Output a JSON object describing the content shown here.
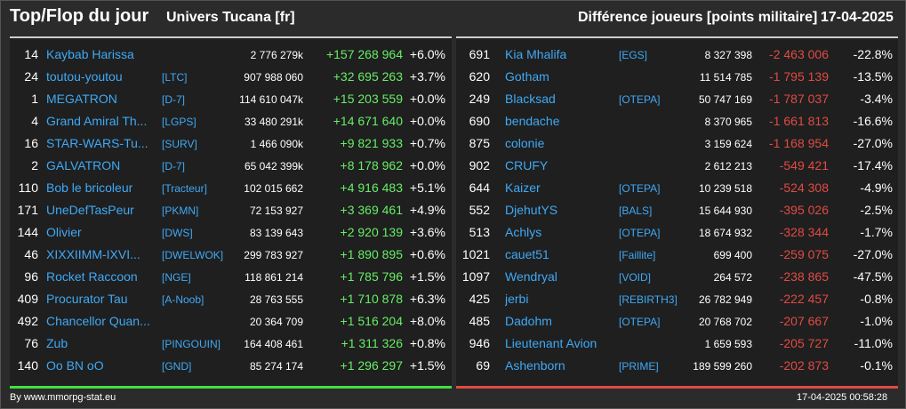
{
  "header": {
    "title": "Top/Flop du jour",
    "server": "Univers Tucana [fr]",
    "description": "Différence joueurs [points militaire]",
    "date": "17-04-2025"
  },
  "colors": {
    "gain": "#66ee66",
    "loss": "#e04b43",
    "link": "#3fa9f5",
    "top_bar": "#44dd44",
    "flop_bar": "#e04b43"
  },
  "top": [
    {
      "rank": "14",
      "name": "Kaybab Harissa",
      "alliance": "",
      "points": "2 776 279k",
      "diff": "+157 268 964",
      "pct": "+6.0%"
    },
    {
      "rank": "24",
      "name": "toutou-youtou",
      "alliance": "[LTC]",
      "points": "907 988 060",
      "diff": "+32 695 263",
      "pct": "+3.7%"
    },
    {
      "rank": "1",
      "name": "MEGATRON",
      "alliance": "[D-7]",
      "points": "114 610 047k",
      "diff": "+15 203 559",
      "pct": "+0.0%"
    },
    {
      "rank": "4",
      "name": "Grand Amiral Th...",
      "alliance": "[LGPS]",
      "points": "33 480 291k",
      "diff": "+14 671 640",
      "pct": "+0.0%"
    },
    {
      "rank": "16",
      "name": "STAR-WARS-Tu...",
      "alliance": "[SURV]",
      "points": "1 466 090k",
      "diff": "+9 821 933",
      "pct": "+0.7%"
    },
    {
      "rank": "2",
      "name": "GALVATRON",
      "alliance": "[D-7]",
      "points": "65 042 399k",
      "diff": "+8 178 962",
      "pct": "+0.0%"
    },
    {
      "rank": "110",
      "name": "Bob le bricoleur",
      "alliance": "[Tracteur]",
      "points": "102 015 662",
      "diff": "+4 916 483",
      "pct": "+5.1%"
    },
    {
      "rank": "171",
      "name": "UneDefTasPeur",
      "alliance": "[PKMN]",
      "points": "72 153 927",
      "diff": "+3 369 461",
      "pct": "+4.9%"
    },
    {
      "rank": "144",
      "name": "Olivier",
      "alliance": "[DWS]",
      "points": "83 139 643",
      "diff": "+2 920 139",
      "pct": "+3.6%"
    },
    {
      "rank": "46",
      "name": "XIXXIIMM-IXVI...",
      "alliance": "[DWELWOK]",
      "points": "299 783 927",
      "diff": "+1 890 895",
      "pct": "+0.6%"
    },
    {
      "rank": "96",
      "name": "Rocket Raccoon",
      "alliance": "[NGE]",
      "points": "118 861 214",
      "diff": "+1 785 796",
      "pct": "+1.5%"
    },
    {
      "rank": "409",
      "name": "Procurator Tau",
      "alliance": "[A-Noob]",
      "points": "28 763 555",
      "diff": "+1 710 878",
      "pct": "+6.3%"
    },
    {
      "rank": "492",
      "name": "Chancellor Quan...",
      "alliance": "",
      "points": "20 364 709",
      "diff": "+1 516 204",
      "pct": "+8.0%"
    },
    {
      "rank": "76",
      "name": "Zub",
      "alliance": "[PINGOUIN]",
      "points": "164 408 461",
      "diff": "+1 311 326",
      "pct": "+0.8%"
    },
    {
      "rank": "140",
      "name": "Oo BN oO",
      "alliance": "[GND]",
      "points": "85 274 174",
      "diff": "+1 296 297",
      "pct": "+1.5%"
    }
  ],
  "flop": [
    {
      "rank": "691",
      "name": "Kia Mhalifa",
      "alliance": "[EGS]",
      "points": "8 327 398",
      "diff": "-2 463 006",
      "pct": "-22.8%"
    },
    {
      "rank": "620",
      "name": "Gotham",
      "alliance": "",
      "points": "11 514 785",
      "diff": "-1 795 139",
      "pct": "-13.5%"
    },
    {
      "rank": "249",
      "name": "Blacksad",
      "alliance": "[OTEPA]",
      "points": "50 747 169",
      "diff": "-1 787 037",
      "pct": "-3.4%"
    },
    {
      "rank": "690",
      "name": "bendache",
      "alliance": "",
      "points": "8 370 965",
      "diff": "-1 661 813",
      "pct": "-16.6%"
    },
    {
      "rank": "875",
      "name": "colonie",
      "alliance": "",
      "points": "3 159 624",
      "diff": "-1 168 954",
      "pct": "-27.0%"
    },
    {
      "rank": "902",
      "name": "CRUFY",
      "alliance": "",
      "points": "2 612 213",
      "diff": "-549 421",
      "pct": "-17.4%"
    },
    {
      "rank": "644",
      "name": "Kaizer",
      "alliance": "[OTEPA]",
      "points": "10 239 518",
      "diff": "-524 308",
      "pct": "-4.9%"
    },
    {
      "rank": "552",
      "name": "DjehutYS",
      "alliance": "[BALS]",
      "points": "15 644 930",
      "diff": "-395 026",
      "pct": "-2.5%"
    },
    {
      "rank": "513",
      "name": "Achlys",
      "alliance": "[OTEPA]",
      "points": "18 674 932",
      "diff": "-328 344",
      "pct": "-1.7%"
    },
    {
      "rank": "1021",
      "name": "cauet51",
      "alliance": "[Faillite]",
      "points": "699 400",
      "diff": "-259 075",
      "pct": "-27.0%"
    },
    {
      "rank": "1097",
      "name": "Wendryal",
      "alliance": "[VOID]",
      "points": "264 572",
      "diff": "-238 865",
      "pct": "-47.5%"
    },
    {
      "rank": "425",
      "name": "jerbi",
      "alliance": "[REBIRTH3]",
      "points": "26 782 949",
      "diff": "-222 457",
      "pct": "-0.8%"
    },
    {
      "rank": "485",
      "name": "Dadohm",
      "alliance": "[OTEPA]",
      "points": "20 768 702",
      "diff": "-207 667",
      "pct": "-1.0%"
    },
    {
      "rank": "946",
      "name": "Lieutenant Avion",
      "alliance": "",
      "points": "1 659 593",
      "diff": "-205 727",
      "pct": "-11.0%"
    },
    {
      "rank": "69",
      "name": "Ashenborn",
      "alliance": "[PRIME]",
      "points": "189 599 260",
      "diff": "-202 873",
      "pct": "-0.1%"
    }
  ],
  "footer": {
    "source": "By www.mmorpg-stat.eu",
    "timestamp": "17-04-2025 00:58:28"
  }
}
